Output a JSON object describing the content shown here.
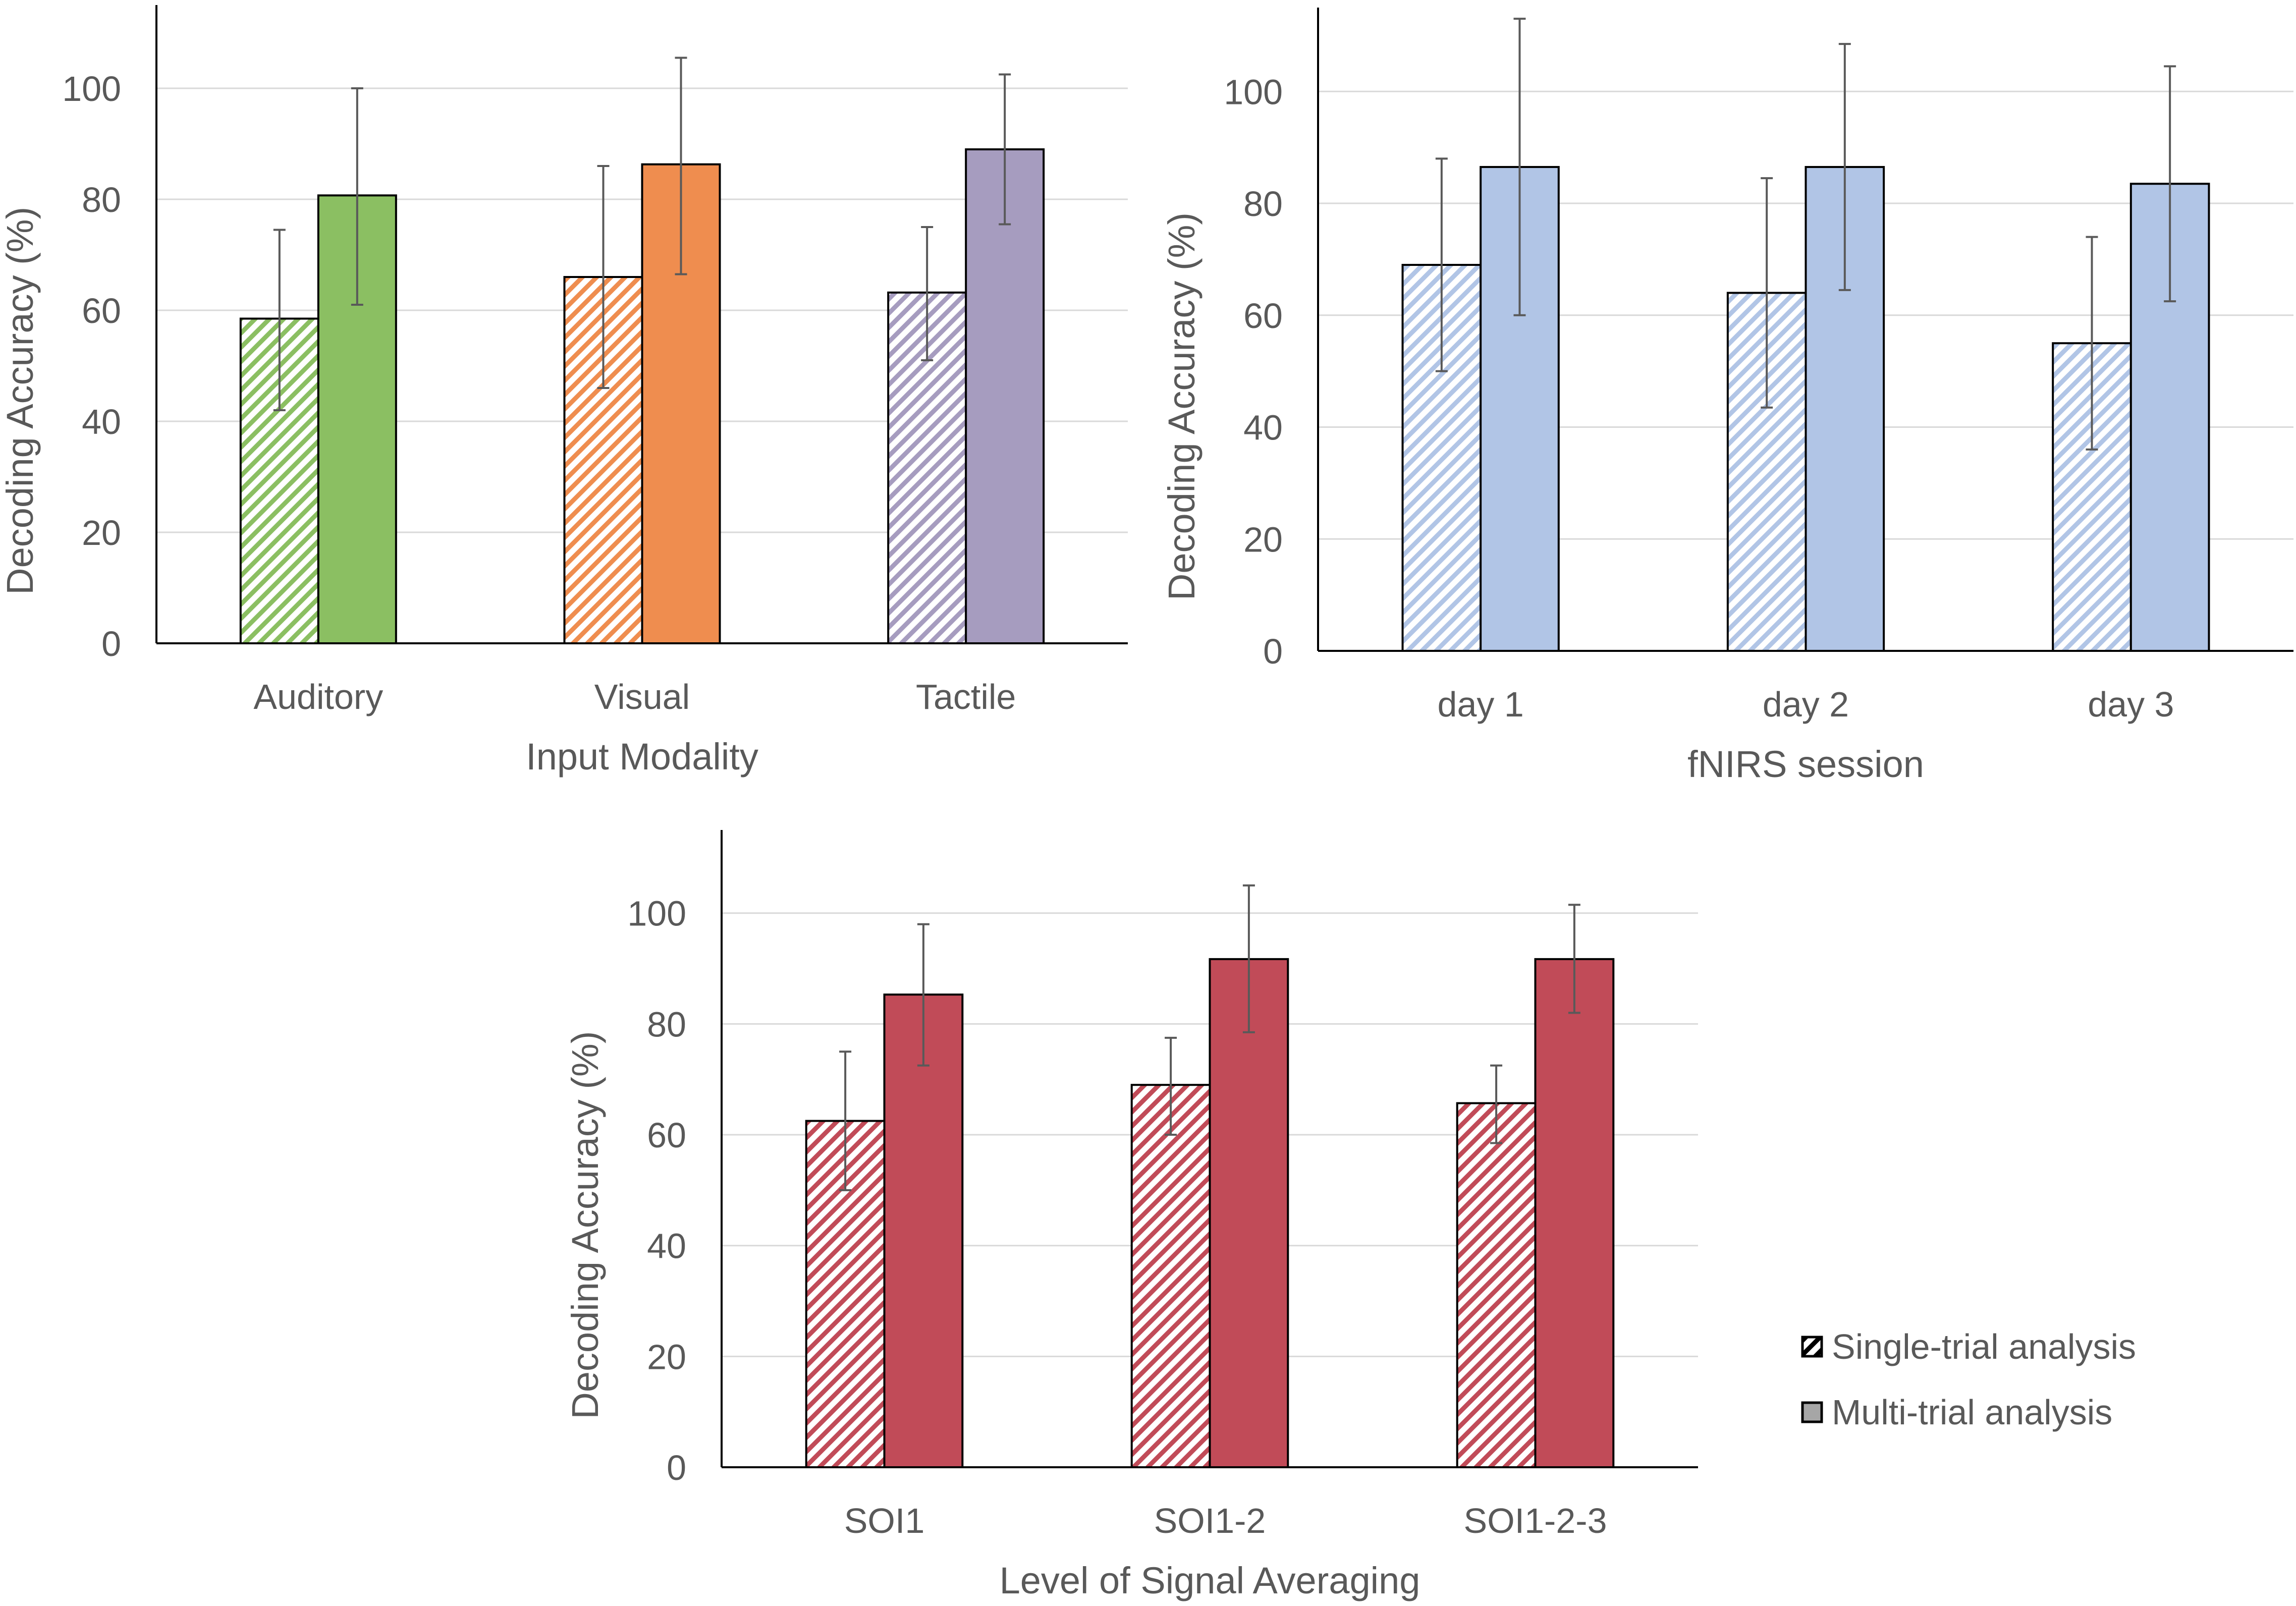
{
  "chart_data": [
    {
      "type": "bar",
      "categories": [
        "Auditory",
        "Visual",
        "Tactile"
      ],
      "series": [
        {
          "name": "Single-trial analysis",
          "values": [
            58.5,
            66,
            63.2
          ],
          "err_low": [
            42,
            46,
            51
          ],
          "err_high": [
            74.5,
            86,
            75
          ],
          "pattern": "hatched"
        },
        {
          "name": "Multi-trial analysis",
          "values": [
            80.7,
            86.3,
            89
          ],
          "err_low": [
            61,
            66.5,
            75.5
          ],
          "err_high": [
            100,
            105.5,
            102.5
          ],
          "pattern": "solid"
        }
      ],
      "colors": [
        "#8bbf62",
        "#ef8d4f",
        "#a69cbf"
      ],
      "xlabel": "Input Modality",
      "ylabel": "Decoding Accuracy (%)",
      "ylim": [
        0,
        110
      ],
      "yticks": [
        "0",
        "20",
        "40",
        "60",
        "80",
        "100"
      ],
      "grid": true
    },
    {
      "type": "bar",
      "categories": [
        "day 1",
        "day 2",
        "day 3"
      ],
      "series": [
        {
          "name": "Single-trial analysis",
          "values": [
            69,
            64,
            55
          ],
          "err_low": [
            50,
            43.5,
            36
          ],
          "err_high": [
            88,
            84.5,
            74
          ],
          "pattern": "hatched"
        },
        {
          "name": "Multi-trial analysis",
          "values": [
            86.5,
            86.5,
            83.5
          ],
          "err_low": [
            60,
            64.5,
            62.5
          ],
          "err_high": [
            113,
            108.5,
            104.5
          ],
          "pattern": "solid"
        }
      ],
      "colors": [
        "#b1c5e6",
        "#b1c5e6",
        "#b1c5e6"
      ],
      "xlabel": "fNIRS session",
      "ylabel": "Decoding Accuracy (%)",
      "ylim": [
        0,
        115
      ],
      "yticks": [
        "0",
        "20",
        "40",
        "60",
        "80",
        "100"
      ],
      "grid": true
    },
    {
      "type": "bar",
      "categories": [
        "SOI1",
        "SOI1-2",
        "SOI1-2-3"
      ],
      "series": [
        {
          "name": "Single-trial analysis",
          "values": [
            62.5,
            69,
            65.7
          ],
          "err_low": [
            50,
            60,
            58.5
          ],
          "err_high": [
            75,
            77.5,
            72.5
          ],
          "pattern": "hatched"
        },
        {
          "name": "Multi-trial analysis",
          "values": [
            85.3,
            91.7,
            91.7
          ],
          "err_low": [
            72.5,
            78.5,
            82
          ],
          "err_high": [
            98,
            105,
            101.5
          ],
          "pattern": "solid"
        }
      ],
      "colors": [
        "#c14b58",
        "#c14b58",
        "#c14b58"
      ],
      "xlabel": "Level of Signal Averaging",
      "ylabel": "Decoding Accuracy (%)",
      "ylim": [
        0,
        115
      ],
      "yticks": [
        "0",
        "20",
        "40",
        "60",
        "80",
        "100"
      ],
      "grid": true
    }
  ],
  "legend": {
    "placement": "bottom-right",
    "items": [
      {
        "label": "Single-trial analysis",
        "pattern": "hatched"
      },
      {
        "label": "Multi-trial analysis",
        "pattern": "solid"
      }
    ]
  }
}
